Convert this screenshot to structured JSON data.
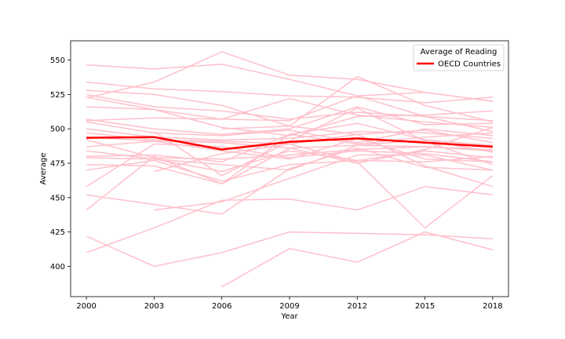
{
  "chart_data": {
    "type": "line",
    "xlabel": "Year",
    "ylabel": "Average",
    "x": [
      2000,
      2003,
      2006,
      2009,
      2012,
      2015,
      2018
    ],
    "xlim": [
      1999.3,
      2018.7
    ],
    "ylim": [
      378,
      564
    ],
    "yticks": [
      400,
      425,
      450,
      475,
      500,
      525,
      550
    ],
    "legend": {
      "title": "Average of Reading",
      "position": "top-right"
    },
    "highlight": {
      "name": "OECD Countries",
      "color": "#ff0000",
      "values": [
        493.5,
        494,
        485,
        490.5,
        493,
        490,
        487
      ]
    },
    "country_color": "#ffc0cb",
    "country_series": [
      {
        "values": [
          546.5,
          543.5,
          547,
          536,
          524,
          526.5,
          520
        ]
      },
      {
        "values": [
          522.5,
          534,
          556,
          539,
          536,
          526.5,
          520
        ]
      },
      {
        "values": [
          534,
          529,
          527,
          524,
          523,
          519,
          523
        ]
      },
      {
        "values": [
          528,
          525,
          517,
          502,
          538,
          517,
          505
        ]
      },
      {
        "values": [
          525,
          516,
          513,
          507,
          512,
          509,
          506
        ]
      },
      {
        "values": [
          523,
          514,
          501,
          495,
          509,
          510,
          513
        ]
      },
      {
        "values": [
          516,
          514,
          507,
          522,
          510,
          505,
          501
        ]
      },
      {
        "values": [
          506,
          508,
          507,
          506,
          524,
          509,
          498
        ]
      },
      {
        "values": [
          507,
          500,
          496,
          500,
          516,
          503,
          504
        ]
      },
      {
        "values": [
          505,
          497,
          495,
          499,
          490,
          500,
          495
        ]
      },
      {
        "values": [
          500,
          494,
          492,
          493,
          498,
          497,
          493
        ]
      },
      {
        "values": [
          497,
          492,
          491,
          489,
          496,
          499,
          490
        ]
      },
      {
        "values": [
          494,
          491,
          490,
          486,
          488,
          492,
          488
        ]
      },
      {
        "values": [
          492,
          479,
          478,
          481,
          485,
          487,
          484
        ]
      },
      {
        "values": [
          487,
          491,
          484,
          478,
          493,
          478,
          476
        ]
      },
      {
        "values": [
          484,
          478,
          474,
          470,
          488,
          487,
          485
        ]
      },
      {
        "values": [
          480,
          481,
          476,
          496,
          489,
          494,
          497
        ]
      },
      {
        "values": [
          479,
          478,
          469,
          484,
          477,
          476,
          480
        ]
      },
      {
        "values": [
          474,
          473,
          460,
          496,
          504,
          492,
          483
        ]
      },
      {
        "values": [
          470,
          477,
          462,
          474,
          477,
          484,
          479
        ]
      },
      {
        "values": [
          458,
          489,
          487,
          479,
          484,
          482,
          476
        ]
      },
      {
        "values": [
          452,
          445,
          438,
          471,
          486,
          472,
          470
        ]
      },
      {
        "values": [
          441,
          480,
          460,
          486,
          475,
          485,
          501
        ]
      },
      {
        "values": [
          422,
          400,
          410,
          425,
          424,
          423,
          420
        ]
      },
      {
        "values": [
          410,
          428,
          448,
          449,
          441,
          458,
          452
        ]
      },
      {
        "values": [
          null,
          469,
          482,
          489,
          476,
          428,
          466
        ]
      },
      {
        "values": [
          null,
          441,
          447,
          464,
          481,
          481,
          470
        ]
      },
      {
        "values": [
          null,
          null,
          385,
          413,
          403,
          425,
          412
        ]
      },
      {
        "values": [
          null,
          null,
          500,
          502,
          496,
          473,
          458
        ]
      },
      {
        "values": [
          null,
          498,
          466,
          491,
          515,
          491,
          474
        ]
      }
    ]
  }
}
